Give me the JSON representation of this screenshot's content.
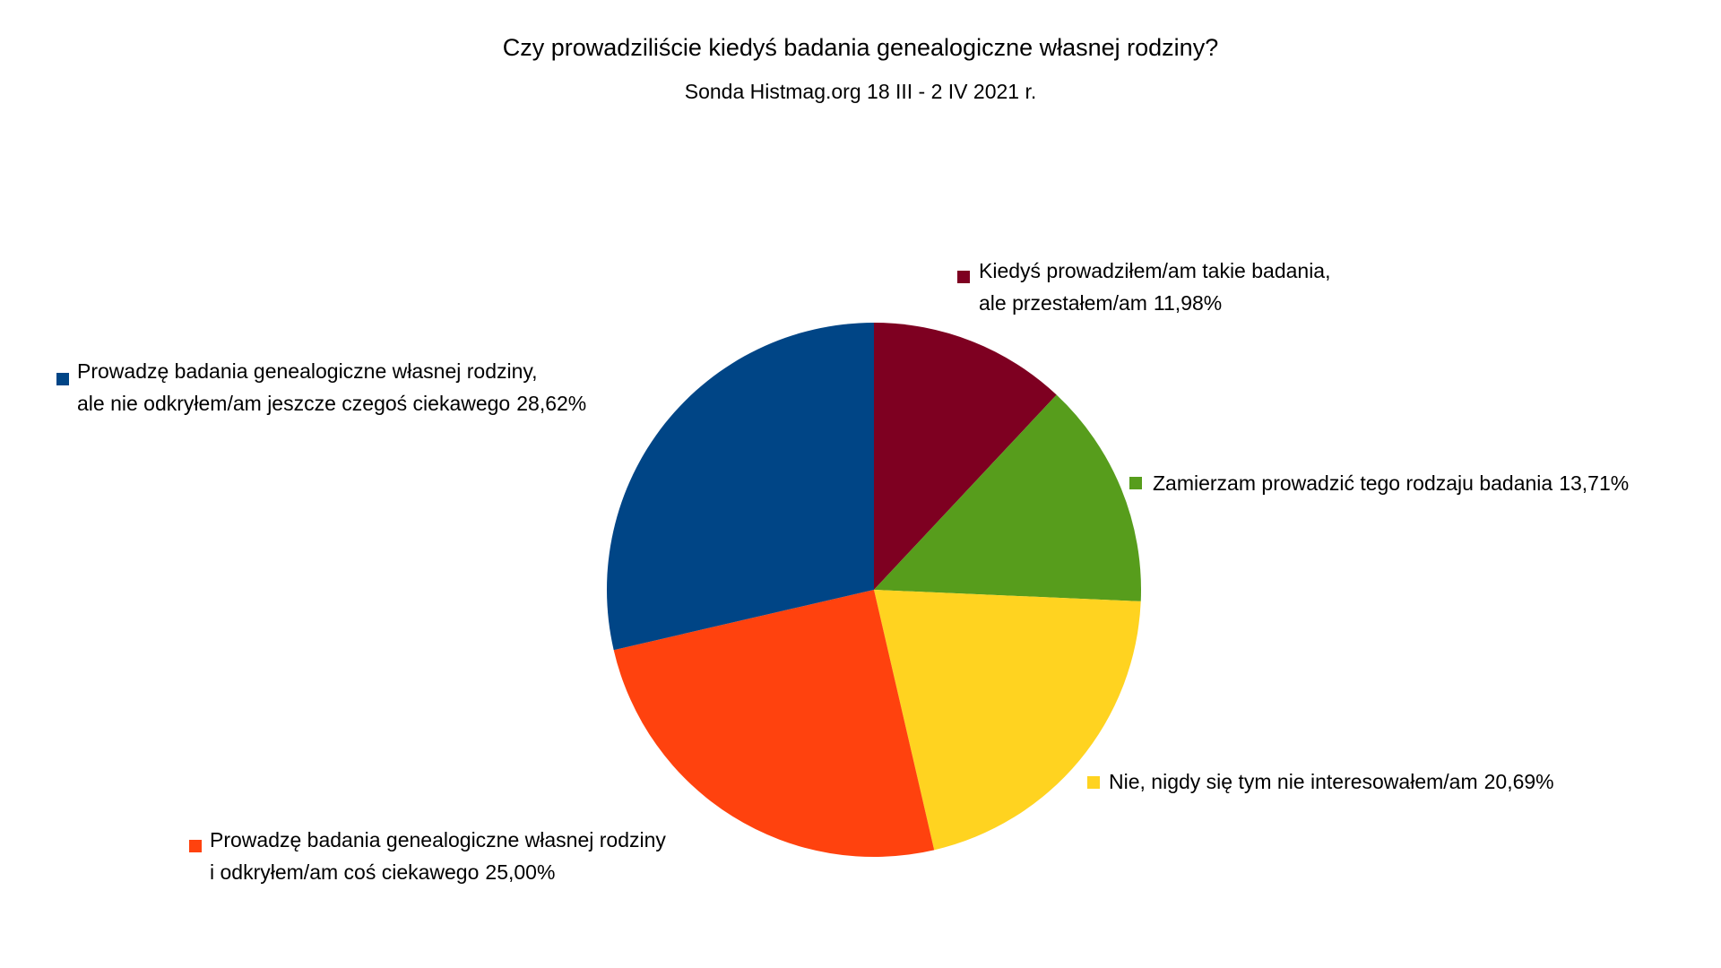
{
  "chart_data": {
    "type": "pie",
    "title": "Czy prowadziliście kiedyś badania genealogiczne własnej rodziny?",
    "subtitle": "Sonda Histmag.org 18 III - 2 IV 2021 r.",
    "categories": [
      [
        "Kiedyś prowadziłem/am takie badania,",
        "ale przestałem/am"
      ],
      [
        "Zamierzam prowadzić tego rodzaju badania"
      ],
      [
        "Nie, nigdy się tym nie interesowałem/am"
      ],
      [
        "Prowadzę badania genealogiczne własnej rodziny",
        "i odkryłem/am coś ciekawego"
      ],
      [
        "Prowadzę badania genealogiczne własnej rodziny,",
        "ale nie odkryłem/am jeszcze czegoś ciekawego"
      ]
    ],
    "values": [
      11.98,
      13.71,
      20.69,
      25.0,
      28.62
    ],
    "value_labels": [
      "11,98%",
      "13,71%",
      "20,69%",
      "25,00%",
      "28,62%"
    ],
    "colors": [
      "#7e0021",
      "#579d1c",
      "#ffd320",
      "#ff420e",
      "#004586"
    ]
  }
}
